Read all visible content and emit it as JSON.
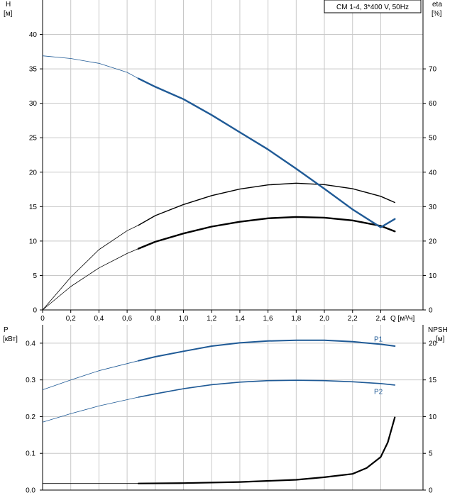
{
  "chart_data": [
    {
      "type": "line",
      "legend": "CM 1-4, 3*400 V, 50Hz",
      "left_axis": {
        "label_top": "H",
        "label_unit": "[м]",
        "ticks": [
          0,
          5,
          10,
          15,
          20,
          25,
          30,
          35,
          40
        ],
        "range": [
          0,
          45
        ]
      },
      "right_axis": {
        "label_top": "eta",
        "label_unit": "[%]",
        "ticks": [
          0,
          10,
          20,
          30,
          40,
          50,
          60,
          70
        ],
        "range": [
          0,
          90
        ]
      },
      "x_axis": {
        "label": "Q [м³/ч]",
        "ticks": [
          "0",
          "0,2",
          "0,4",
          "0,6",
          "0,8",
          "1,0",
          "1,2",
          "1,4",
          "1,6",
          "1,8",
          "2,0",
          "2,2",
          "2,4"
        ],
        "range": [
          0,
          2.7
        ]
      },
      "grid": true,
      "duty_range_start_q": 0.68,
      "series": [
        {
          "color": "#1f5a96",
          "axis": "left",
          "x": [
            0,
            0.2,
            0.4,
            0.6,
            0.68,
            0.8,
            1.0,
            1.2,
            1.4,
            1.6,
            1.8,
            2.0,
            2.2,
            2.4,
            2.5
          ],
          "y": [
            36.9,
            36.5,
            35.8,
            34.5,
            33.6,
            32.4,
            30.6,
            28.3,
            25.8,
            23.3,
            20.5,
            17.6,
            14.6,
            12.0,
            13.2
          ]
        },
        {
          "color": "#000000",
          "axis": "right",
          "x": [
            0,
            0.2,
            0.4,
            0.6,
            0.68,
            0.8,
            1.0,
            1.2,
            1.4,
            1.6,
            1.8,
            2.0,
            2.2,
            2.4,
            2.5
          ],
          "y": [
            0,
            9.5,
            17.5,
            23.0,
            24.6,
            27.4,
            30.6,
            33.2,
            35.1,
            36.3,
            36.8,
            36.4,
            35.2,
            33.0,
            31.2
          ]
        },
        {
          "color": "#000000",
          "axis": "left",
          "x": [
            0,
            0.2,
            0.4,
            0.6,
            0.68,
            0.8,
            1.0,
            1.2,
            1.4,
            1.6,
            1.8,
            2.0,
            2.2,
            2.4,
            2.5
          ],
          "y": [
            0,
            3.4,
            6.1,
            8.2,
            8.9,
            9.9,
            11.1,
            12.1,
            12.8,
            13.3,
            13.5,
            13.4,
            13.0,
            12.2,
            11.4
          ]
        }
      ]
    },
    {
      "type": "line",
      "left_axis": {
        "label_top": "P",
        "label_unit": "[кВт]",
        "ticks": [
          "0.0",
          "0.1",
          "0.2",
          "0.3",
          "0.4"
        ],
        "range": [
          0,
          0.45
        ]
      },
      "right_axis": {
        "label_top": "NPSH",
        "label_unit": "[м]",
        "ticks": [
          0,
          5,
          10,
          15,
          20
        ],
        "range": [
          0,
          22.5
        ]
      },
      "x_range": [
        0,
        2.7
      ],
      "grid": true,
      "duty_range_start_q": 0.68,
      "series": [
        {
          "name": "P1",
          "color": "#1f5a96",
          "axis": "left",
          "x": [
            0,
            0.2,
            0.4,
            0.68,
            0.8,
            1.0,
            1.2,
            1.4,
            1.6,
            1.8,
            2.0,
            2.2,
            2.4,
            2.5
          ],
          "y": [
            0.273,
            0.3,
            0.325,
            0.352,
            0.363,
            0.378,
            0.392,
            0.401,
            0.406,
            0.408,
            0.408,
            0.404,
            0.397,
            0.392
          ]
        },
        {
          "name": "P2",
          "color": "#1f5a96",
          "axis": "left",
          "x": [
            0,
            0.2,
            0.4,
            0.68,
            0.8,
            1.0,
            1.2,
            1.4,
            1.6,
            1.8,
            2.0,
            2.2,
            2.4,
            2.5
          ],
          "y": [
            0.185,
            0.208,
            0.229,
            0.253,
            0.262,
            0.276,
            0.287,
            0.294,
            0.298,
            0.299,
            0.298,
            0.295,
            0.29,
            0.286
          ]
        },
        {
          "color": "#000000",
          "axis": "right",
          "x": [
            0,
            0.68,
            1.0,
            1.4,
            1.8,
            2.0,
            2.2,
            2.3,
            2.4,
            2.45,
            2.5
          ],
          "y": [
            0.9,
            0.9,
            0.95,
            1.1,
            1.4,
            1.75,
            2.2,
            3.0,
            4.5,
            6.5,
            9.9
          ]
        }
      ]
    }
  ]
}
